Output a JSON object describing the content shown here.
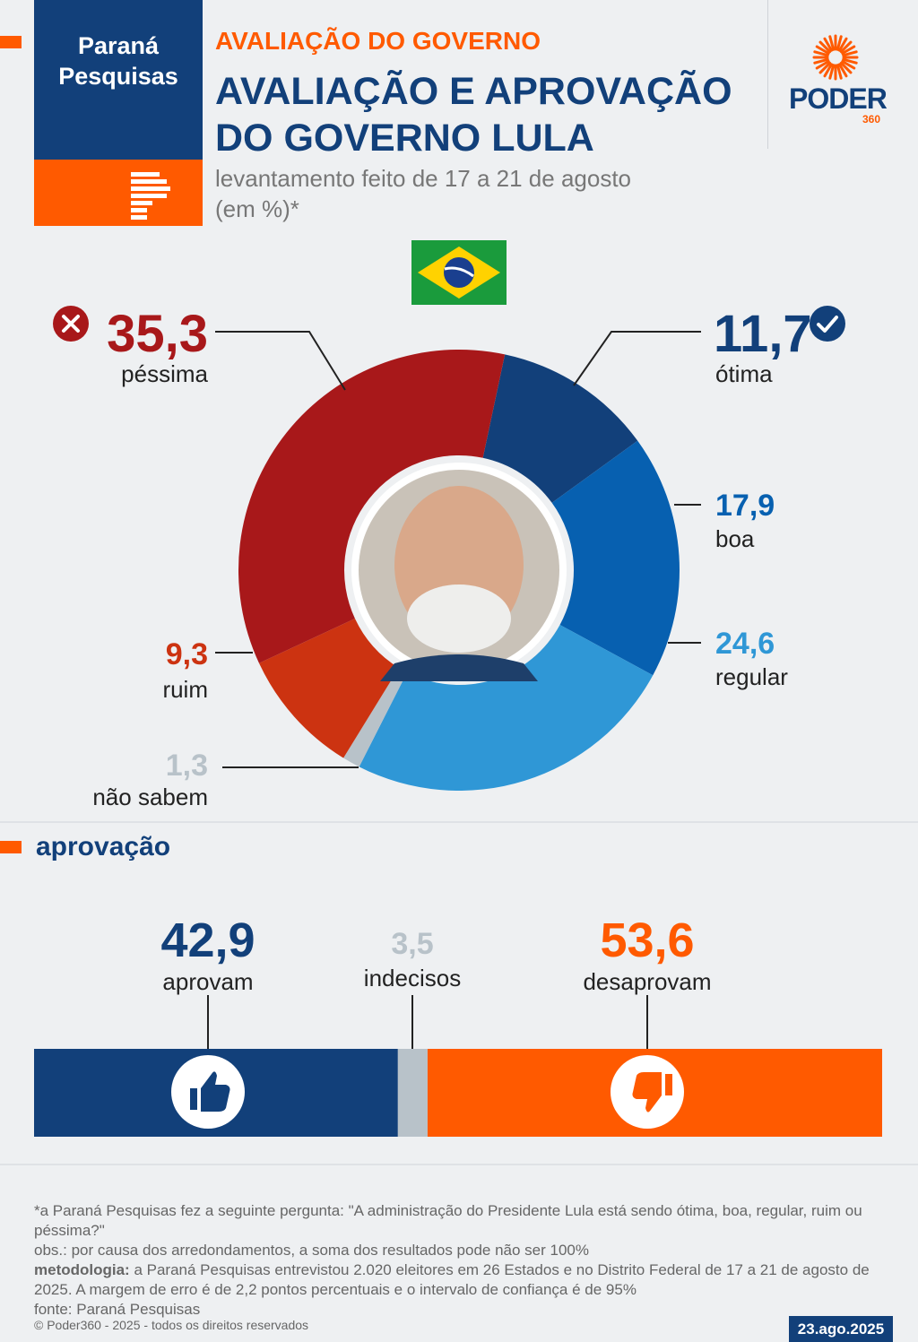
{
  "header": {
    "brand_line1": "Paraná",
    "brand_line2": "Pesquisas",
    "kicker": "AVALIAÇÃO DO GOVERNO",
    "title_line1": "AVALIAÇÃO E APROVAÇÃO",
    "title_line2": "DO GOVERNO LULA",
    "subtitle_line1": "levantamento feito de 17 a 21 de agosto",
    "subtitle_line2": "(em %)*",
    "logo_text": "PODER",
    "logo_sub": "360"
  },
  "colors": {
    "pessima": "#a8181a",
    "ruim": "#cc3311",
    "nao_sabem": "#b8c2c9",
    "regular": "#2f97d6",
    "boa": "#0760b0",
    "otima": "#12407a",
    "aprovam": "#12407a",
    "indecisos": "#b8c2c9",
    "desaprovam": "#ff5a00"
  },
  "chart_data": [
    {
      "type": "pie",
      "slices": [
        {
          "label": "ótima",
          "value": 11.7,
          "display": "11,7"
        },
        {
          "label": "boa",
          "value": 17.9,
          "display": "17,9"
        },
        {
          "label": "regular",
          "value": 24.6,
          "display": "24,6"
        },
        {
          "label": "não sabem",
          "value": 1.3,
          "display": "1,3"
        },
        {
          "label": "ruim",
          "value": 9.3,
          "display": "9,3"
        },
        {
          "label": "péssima",
          "value": 35.3,
          "display": "35,3"
        }
      ]
    },
    {
      "type": "bar",
      "title": "aprovação",
      "segments": [
        {
          "label": "aprovam",
          "value": 42.9,
          "display": "42,9"
        },
        {
          "label": "indecisos",
          "value": 3.5,
          "display": "3,5"
        },
        {
          "label": "desaprovam",
          "value": 53.6,
          "display": "53,6"
        }
      ]
    }
  ],
  "footnote": {
    "q": "*a Paraná Pesquisas fez a seguinte pergunta: \"A administração do Presidente Lula está sendo ótima, boa, regular, ruim ou péssima?\"",
    "obs": "obs.: por causa dos arredondamentos, a soma dos resultados pode não ser 100%",
    "method_label": "metodologia:",
    "method": " a Paraná Pesquisas entrevistou 2.020 eleitores em 26 Estados e no Distrito Federal de 17 a 21 de agosto de 2025. A margem de erro é de 2,2 pontos percentuais e o intervalo de confiança é de 95%",
    "source": "fonte: Paraná Pesquisas"
  },
  "copyright": "© Poder360 - 2025 - todos os direitos reservados",
  "date": "23.ago.2025"
}
